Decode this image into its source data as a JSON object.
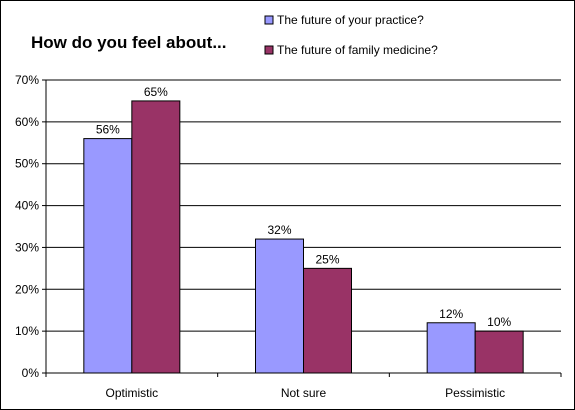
{
  "chart_data": {
    "type": "bar",
    "title": "How do you feel about...",
    "categories": [
      "Optimistic",
      "Not sure",
      "Pessimistic"
    ],
    "series": [
      {
        "name": "The future of your practice?",
        "values": [
          56,
          32,
          12
        ],
        "color": "#9999FF"
      },
      {
        "name": "The future of family medicine?",
        "values": [
          65,
          25,
          10
        ],
        "color": "#993366"
      }
    ],
    "ylim": [
      0,
      70
    ],
    "yticks": [
      0,
      10,
      20,
      30,
      40,
      50,
      60,
      70
    ],
    "tick_suffix": "%",
    "data_label_suffix": "%",
    "grid": true,
    "legend_position": "top-right"
  }
}
